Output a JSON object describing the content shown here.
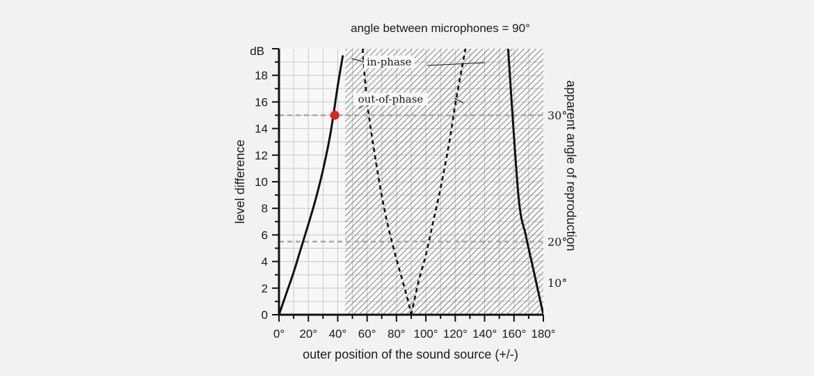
{
  "chart_data": {
    "type": "line",
    "title": "angle between microphones = 90°",
    "xlabel": "outer position of the sound source (+/-)",
    "ylabel": "level difference",
    "y2label": "apparent angle of reproduction",
    "y_unit": "dB",
    "xlim": [
      0,
      180
    ],
    "ylim": [
      0,
      20
    ],
    "x_ticks": [
      "0°",
      "20°",
      "40°",
      "60°",
      "80°",
      "100°",
      "120°",
      "140°",
      "160°",
      "180°"
    ],
    "y_ticks": [
      "0",
      "2",
      "4",
      "6",
      "8",
      "10",
      "12",
      "14",
      "16",
      "18"
    ],
    "grid": true,
    "hatched_region": {
      "x_from": 45,
      "x_to": 180
    },
    "series": [
      {
        "name": "in-phase",
        "style": "solid",
        "segments": [
          {
            "x": [
              0,
              5,
              10,
              15,
              20,
              25,
              30,
              35,
              40,
              43.5
            ],
            "y": [
              0,
              1.6,
              3.2,
              5.0,
              6.8,
              8.7,
              10.9,
              13.6,
              17.2,
              19.5
            ]
          },
          {
            "x": [
              156,
              163,
              168,
              172,
              175,
              178,
              180
            ],
            "y": [
              20,
              9.0,
              6.0,
              4.0,
              2.5,
              1.0,
              0
            ]
          }
        ]
      },
      {
        "name": "out-of-phase",
        "style": "dashed",
        "segments": [
          {
            "x": [
              57,
              60,
              66,
              72,
              78,
              84,
              88,
              90
            ],
            "y": [
              20,
              16.0,
              11.5,
              7.8,
              5.0,
              2.6,
              1.0,
              0
            ]
          },
          {
            "x": [
              90,
              95,
              100,
              105,
              110,
              116,
              120,
              127
            ],
            "y": [
              0,
              2.5,
              4.5,
              7.0,
              9.5,
              13.0,
              15.8,
              20
            ]
          }
        ]
      }
    ],
    "marker": {
      "x": 38,
      "y": 15,
      "color": "#e0241b"
    },
    "reference_lines": [
      {
        "y": 15,
        "label": "30°"
      },
      {
        "y": 5.5,
        "label": "20°"
      }
    ],
    "right_labels": [
      {
        "y": 2.4,
        "label": "10°"
      }
    ],
    "annotations": [
      {
        "text": "in-phase",
        "x": 75,
        "y": 18.8
      },
      {
        "text": "out-of-phase",
        "x": 76,
        "y": 16.0
      }
    ],
    "colors": {
      "curve": "#111111",
      "grid": "#c8c8c8",
      "reference": "#a8a8a8",
      "hatch": "#3a3a3a"
    }
  }
}
